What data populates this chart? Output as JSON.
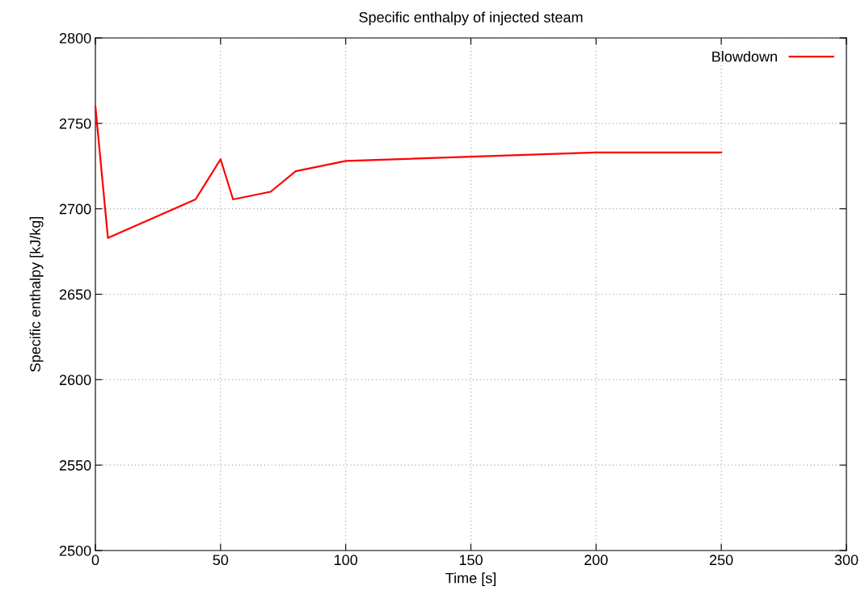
{
  "chart_data": {
    "type": "line",
    "title": "Specific enthalpy of injected steam",
    "xlabel": "Time [s]",
    "ylabel": "Specific enthalpy [kJ/kg]",
    "series": [
      {
        "name": "Blowdown",
        "color": "#ff0000",
        "x": [
          0,
          5,
          40,
          50,
          55,
          70,
          80,
          100,
          200,
          250
        ],
        "values": [
          2760,
          2683,
          2705.5,
          2729,
          2705.5,
          2710,
          2722,
          2728,
          2733,
          2733
        ]
      }
    ],
    "xlim": [
      0,
      300
    ],
    "xticks": [
      0,
      50,
      100,
      150,
      200,
      250,
      300
    ],
    "ylim": [
      2500,
      2800
    ],
    "yticks": [
      2500,
      2550,
      2600,
      2650,
      2700,
      2750,
      2800
    ],
    "grid": true,
    "legend": "top right",
    "line_style": "solid",
    "marker": "none"
  }
}
